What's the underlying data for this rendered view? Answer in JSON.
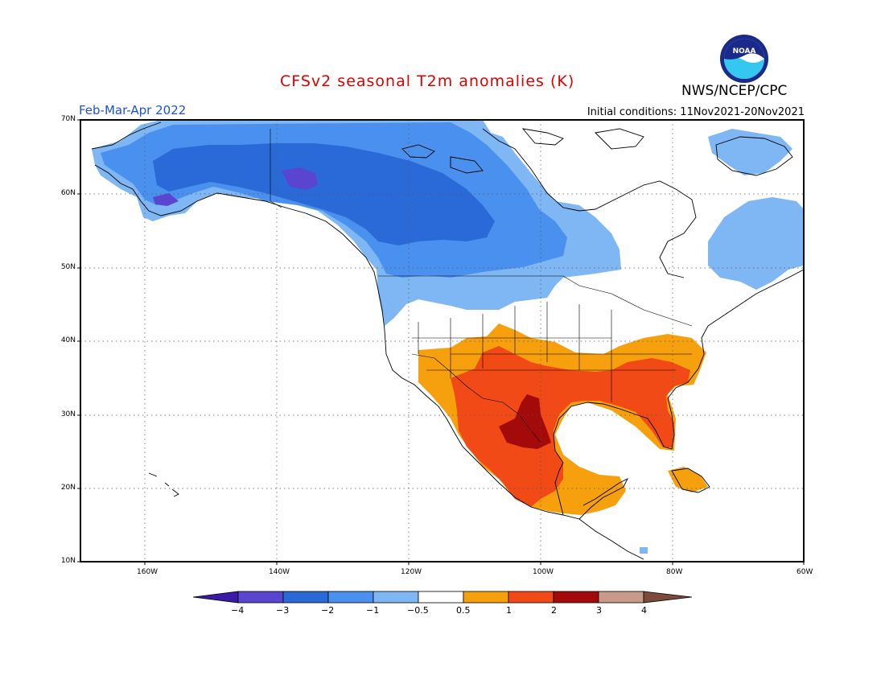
{
  "header": {
    "title": "CFSv2 seasonal T2m anomalies (K)",
    "organization": "NWS/NCEP/CPC",
    "logo_text": "NOAA",
    "period": "Feb-Mar-Apr 2022",
    "initial_conditions": "Initial conditions: 11Nov2021-20Nov2021"
  },
  "colors": {
    "title": "#e00000",
    "period": "#2050e0",
    "level_m4": "#3a1aa6",
    "level_m3": "#5a45d0",
    "level_m2": "#2a6ad8",
    "level_m1": "#4a90ee",
    "level_m05": "#7fb6f4",
    "level_0": "#ffffff",
    "level_p05": "#f5a00c",
    "level_p1": "#f24a16",
    "level_p2": "#a50a0a",
    "level_p3": "#c89a8a",
    "level_p4": "#7b4a3a"
  },
  "axes": {
    "lat_labels": [
      "70N",
      "60N",
      "50N",
      "40N",
      "30N",
      "20N",
      "10N"
    ],
    "lon_labels": [
      "160W",
      "140W",
      "120W",
      "100W",
      "80W",
      "60W"
    ]
  },
  "colorbar": {
    "ticks": [
      "−4",
      "−3",
      "−2",
      "−1",
      "−0.5",
      "0.5",
      "1",
      "2",
      "3",
      "4"
    ]
  }
}
